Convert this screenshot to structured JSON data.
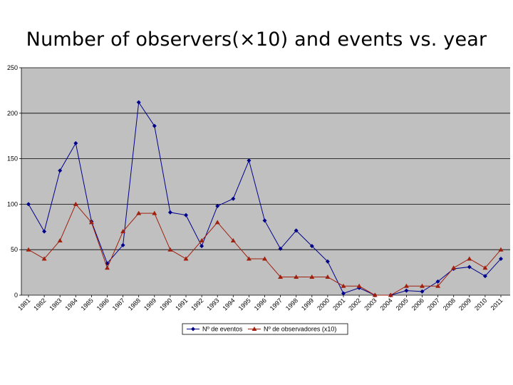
{
  "slide": {
    "title": "Number of observers(×10) and events vs. year"
  },
  "chart_data": {
    "type": "line",
    "title": "",
    "xlabel": "",
    "ylabel": "",
    "ylim": [
      0,
      250
    ],
    "yticks": [
      0,
      50,
      100,
      150,
      200,
      250
    ],
    "grid": "horizontal",
    "legend_position": "bottom",
    "plot_background": "#c0c0c0",
    "categories": [
      "1981",
      "1982",
      "1983",
      "1984",
      "1985",
      "1986",
      "1987",
      "1988",
      "1989",
      "1990",
      "1991",
      "1992",
      "1993",
      "1994",
      "1995",
      "1996",
      "1997",
      "1998",
      "1999",
      "2000",
      "2001",
      "2002",
      "2003",
      "2004",
      "2005",
      "2006",
      "2007",
      "2008",
      "2009",
      "2010",
      "2011"
    ],
    "series": [
      {
        "name": "Nº de eventos",
        "color": "#00008b",
        "marker": "diamond",
        "values": [
          100,
          70,
          137,
          167,
          81,
          35,
          55,
          212,
          186,
          91,
          88,
          54,
          98,
          106,
          148,
          82,
          51,
          71,
          54,
          37,
          2,
          8,
          0,
          0,
          5,
          4,
          15,
          29,
          31,
          21,
          40
        ]
      },
      {
        "name": "Nº de observadores (x10)",
        "color": "#a0200e",
        "marker": "triangle",
        "values": [
          50,
          40,
          60,
          100,
          80,
          30,
          70,
          90,
          90,
          50,
          40,
          60,
          80,
          60,
          40,
          40,
          20,
          20,
          20,
          20,
          10,
          10,
          0,
          0,
          10,
          10,
          10,
          30,
          40,
          30,
          50
        ]
      }
    ]
  }
}
